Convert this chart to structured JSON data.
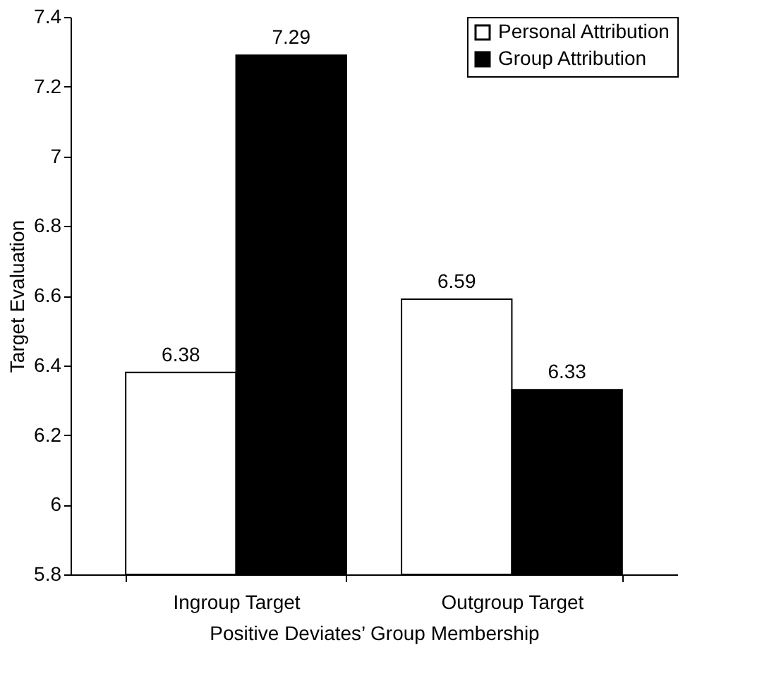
{
  "chart_data": {
    "type": "bar",
    "xlabel": "Positive Deviates’ Group Membership",
    "ylabel": "Target Evaluation",
    "categories": [
      "Ingroup Target",
      "Outgroup Target"
    ],
    "series": [
      {
        "name": "Personal Attribution",
        "color": "#ffffff",
        "values": [
          6.38,
          6.59
        ]
      },
      {
        "name": "Group Attribution",
        "color": "#000000",
        "values": [
          7.29,
          6.33
        ]
      }
    ],
    "ylim": [
      5.8,
      7.4
    ],
    "yticks": [
      5.8,
      6,
      6.2,
      6.4,
      6.6,
      6.8,
      7,
      7.2,
      7.4
    ],
    "grid": false,
    "legend": "top right",
    "data_labels": true
  }
}
